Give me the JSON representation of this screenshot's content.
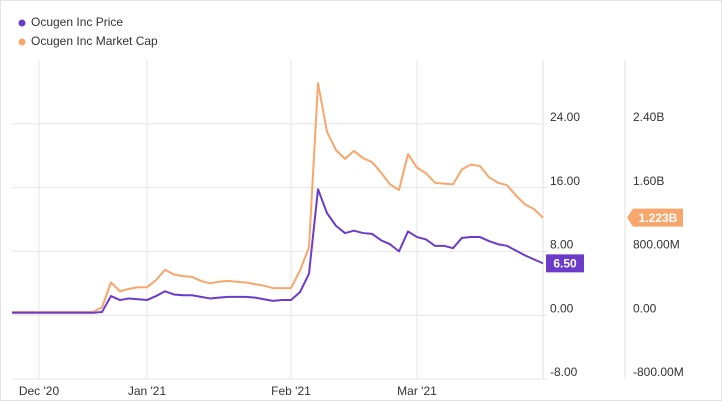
{
  "chart_data": {
    "type": "line",
    "categories": [
      null,
      null,
      null,
      "Dec '20",
      null,
      null,
      null,
      null,
      null,
      null,
      null,
      null,
      null,
      null,
      null,
      "Jan '21",
      null,
      null,
      null,
      null,
      null,
      null,
      null,
      null,
      null,
      null,
      null,
      null,
      null,
      null,
      null,
      "Feb '21",
      null,
      null,
      null,
      null,
      null,
      null,
      null,
      null,
      null,
      null,
      null,
      null,
      null,
      "Mar '21",
      null,
      null,
      null,
      null,
      null,
      null,
      null,
      null,
      null,
      null,
      null,
      null,
      null,
      null
    ],
    "series": [
      {
        "name": "Ocugen Inc Price",
        "color": "#6a3cc9",
        "values": [
          0.3,
          0.3,
          0.3,
          0.3,
          0.3,
          0.3,
          0.3,
          0.3,
          0.3,
          0.3,
          0.4,
          2.4,
          1.9,
          2.1,
          2.0,
          1.9,
          2.4,
          3.0,
          2.6,
          2.5,
          2.5,
          2.3,
          2.1,
          2.2,
          2.3,
          2.3,
          2.3,
          2.2,
          2.0,
          1.8,
          1.9,
          1.9,
          2.9,
          5.2,
          15.8,
          12.8,
          11.2,
          10.3,
          10.6,
          10.3,
          10.2,
          9.4,
          8.9,
          8.0,
          10.5,
          9.8,
          9.5,
          8.7,
          8.7,
          8.4,
          9.7,
          9.8,
          9.8,
          9.3,
          8.9,
          8.7,
          8.1,
          7.5,
          7.0,
          6.5
        ],
        "value_labels": [
          null,
          null,
          null,
          null,
          null,
          null,
          null,
          null,
          null,
          null,
          null,
          null,
          null,
          null,
          null,
          null,
          null,
          null,
          null,
          null,
          null,
          null,
          null,
          null,
          null,
          null,
          null,
          null,
          null,
          null,
          null,
          null,
          null,
          null,
          null,
          null,
          null,
          null,
          null,
          null,
          null,
          null,
          null,
          null,
          null,
          null,
          null,
          null,
          null,
          null,
          null,
          null,
          null,
          null,
          null,
          null,
          null,
          null,
          null,
          "6.50"
        ]
      },
      {
        "name": "Ocugen Inc Market Cap",
        "color": "#f8a66c",
        "axis": "y2",
        "values": [
          40000000,
          40000000,
          40000000,
          40000000,
          40000000,
          40000000,
          40000000,
          40000000,
          40000000,
          40000000,
          100000000,
          410000000,
          300000000,
          330000000,
          350000000,
          350000000,
          440000000,
          570000000,
          510000000,
          490000000,
          480000000,
          430000000,
          400000000,
          420000000,
          430000000,
          420000000,
          410000000,
          390000000,
          370000000,
          340000000,
          340000000,
          340000000,
          560000000,
          850000000,
          2910000000,
          2300000000,
          2070000000,
          1960000000,
          2060000000,
          1970000000,
          1920000000,
          1790000000,
          1640000000,
          1570000000,
          2020000000,
          1850000000,
          1780000000,
          1660000000,
          1650000000,
          1640000000,
          1830000000,
          1890000000,
          1870000000,
          1730000000,
          1660000000,
          1630000000,
          1500000000,
          1390000000,
          1330000000,
          1223000000
        ],
        "value_labels": [
          null,
          null,
          null,
          null,
          null,
          null,
          null,
          null,
          null,
          null,
          null,
          null,
          null,
          null,
          null,
          null,
          null,
          null,
          null,
          null,
          null,
          null,
          null,
          null,
          null,
          null,
          null,
          null,
          null,
          null,
          null,
          null,
          null,
          null,
          null,
          null,
          null,
          null,
          null,
          null,
          null,
          null,
          null,
          null,
          null,
          null,
          null,
          null,
          null,
          null,
          null,
          null,
          null,
          null,
          null,
          null,
          null,
          null,
          null,
          "1.223B"
        ]
      }
    ],
    "ylim": [
      -8,
      32
    ],
    "yticks": [
      {
        "value": -8,
        "label": "-8.00"
      },
      {
        "value": 0,
        "label": "0.00"
      },
      {
        "value": 8,
        "label": "8.00"
      },
      {
        "value": 16,
        "label": "16.00"
      },
      {
        "value": 24,
        "label": "24.00"
      }
    ],
    "y2lim": [
      -800000000,
      3200000000
    ],
    "y2ticks": [
      {
        "value": -800000000,
        "label": "-800.00M"
      },
      {
        "value": 0,
        "label": "0.00"
      },
      {
        "value": 800000000,
        "label": "800.00M"
      },
      {
        "value": 1600000000,
        "label": "1.60B"
      },
      {
        "value": 2400000000,
        "label": "2.40B"
      }
    ],
    "grid": true,
    "legend": "top-left"
  }
}
